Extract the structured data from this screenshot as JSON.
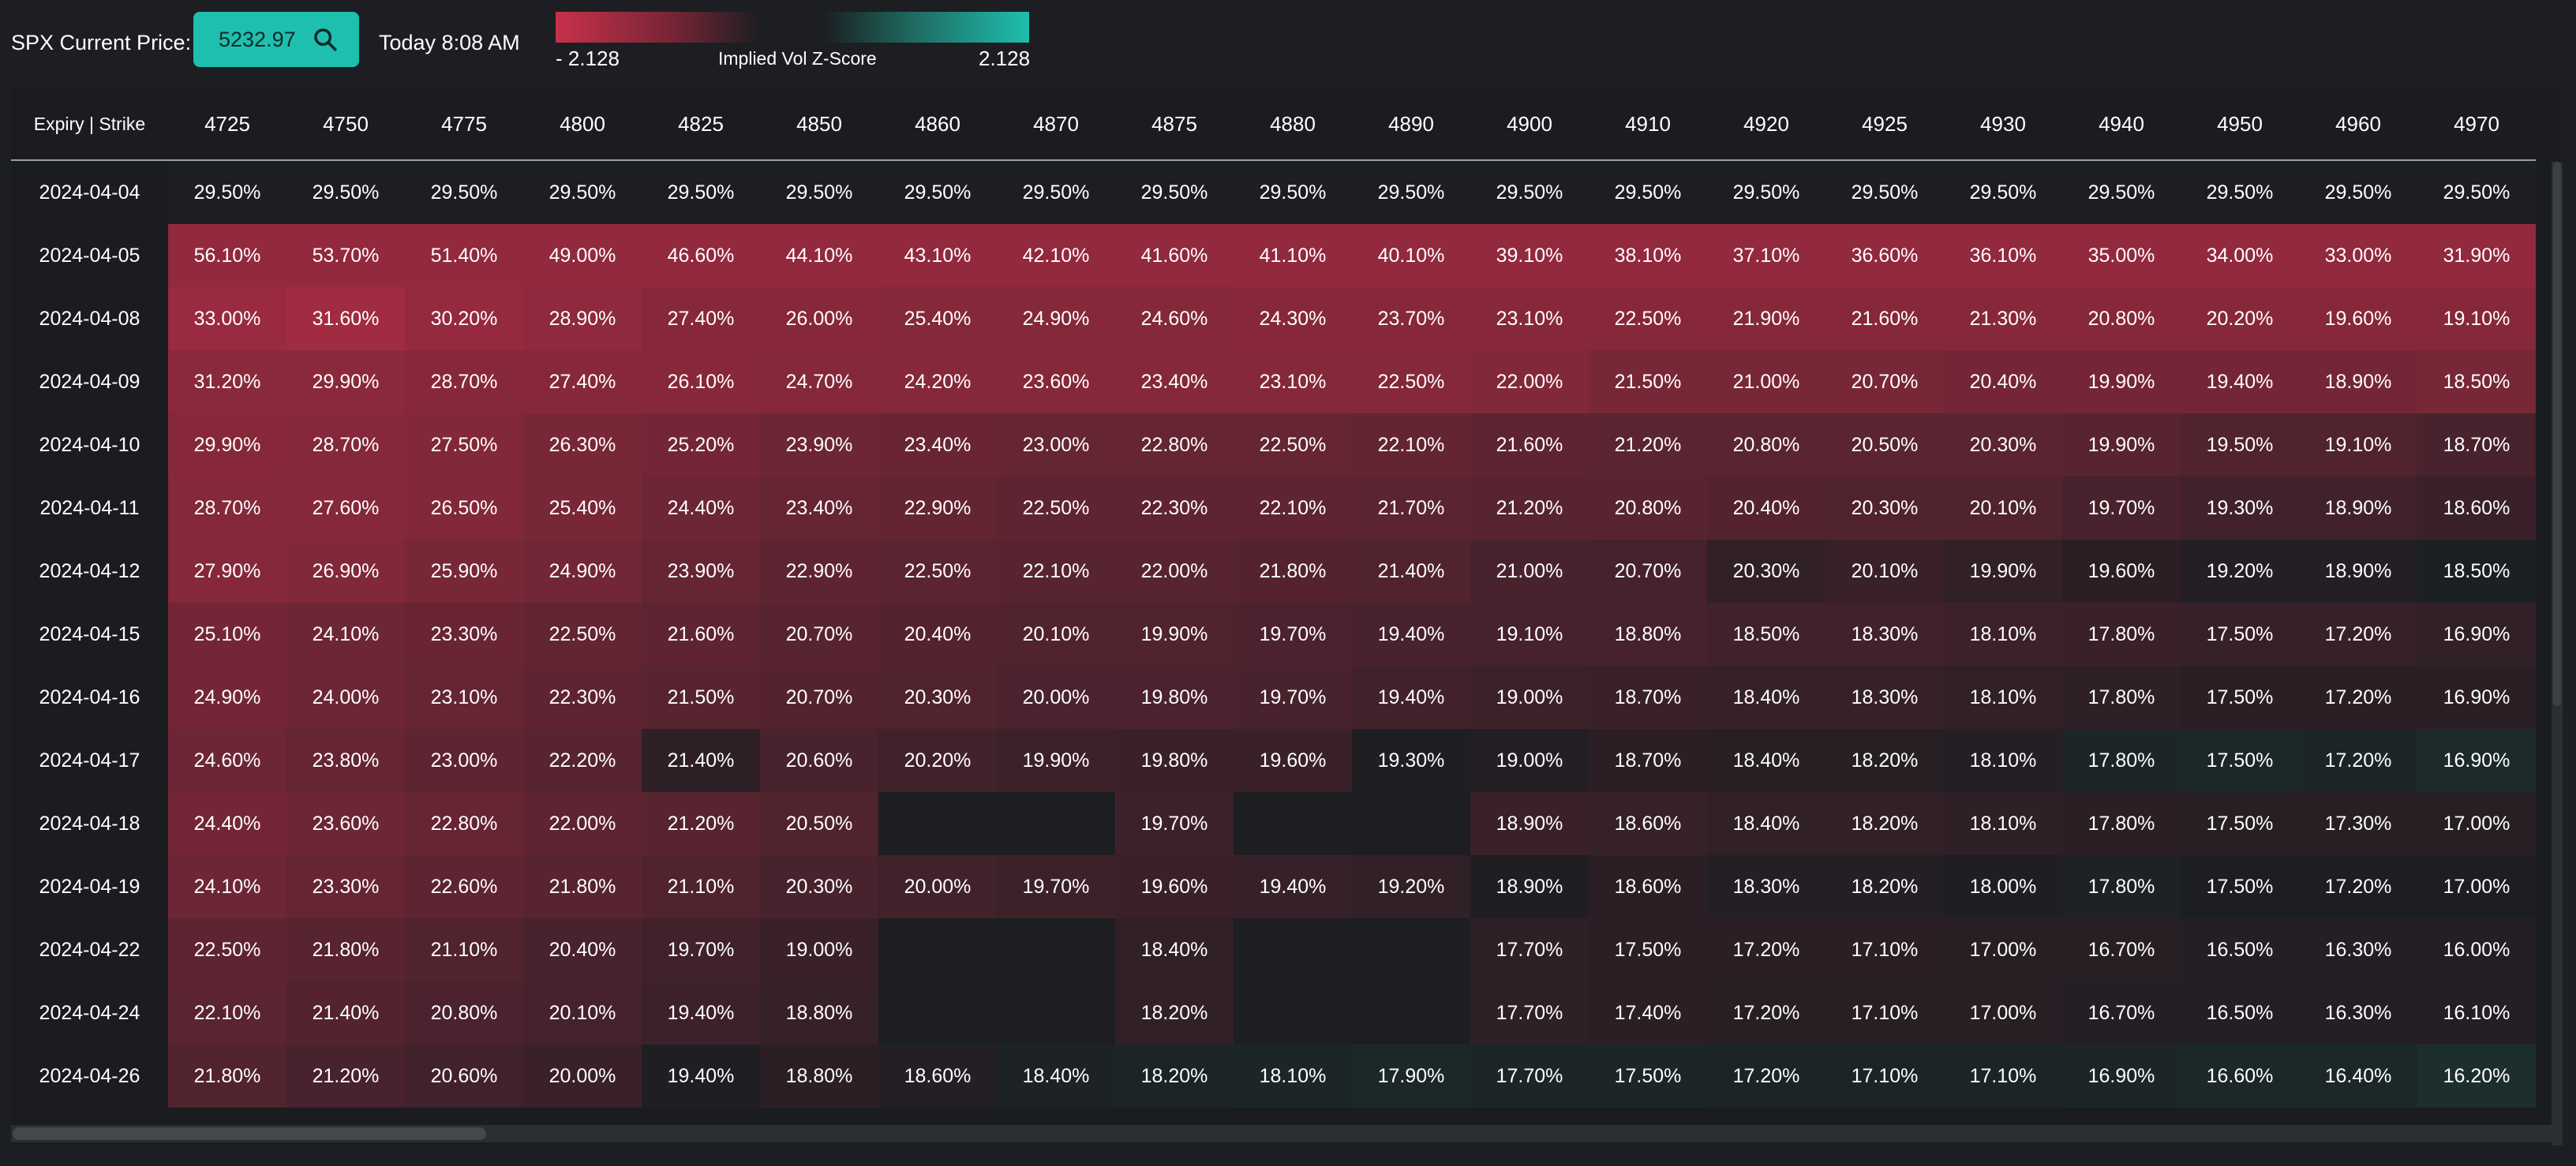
{
  "header": {
    "price_label": "SPX Current Price:",
    "price_value": "5232.97",
    "time_label": "Today 8:08 AM",
    "legend_min": "- 2.128",
    "legend_max": "2.128",
    "legend_title": "Implied Vol Z-Score",
    "icon": "search-icon"
  },
  "colors": {
    "accent": "#1fbfaf",
    "high": "#c7314b",
    "low": "#1f6d63",
    "neutral": "#1c1e22"
  },
  "grid": {
    "corner_label": "Expiry | Strike",
    "strikes": [
      "4725",
      "4750",
      "4775",
      "4800",
      "4825",
      "4850",
      "4860",
      "4870",
      "4875",
      "4880",
      "4890",
      "4900",
      "4910",
      "4920",
      "4925",
      "4930",
      "4940",
      "4950",
      "4960",
      "4970"
    ],
    "rows": [
      {
        "expiry": "2024-04-04",
        "cells": [
          "29.50%",
          "29.50%",
          "29.50%",
          "29.50%",
          "29.50%",
          "29.50%",
          "29.50%",
          "29.50%",
          "29.50%",
          "29.50%",
          "29.50%",
          "29.50%",
          "29.50%",
          "29.50%",
          "29.50%",
          "29.50%",
          "29.50%",
          "29.50%",
          "29.50%",
          "29.50%"
        ],
        "z": [
          0,
          0,
          0,
          0,
          0,
          0,
          0,
          0,
          0,
          0,
          0,
          0,
          0,
          0,
          0,
          0,
          0,
          0,
          0,
          0
        ]
      },
      {
        "expiry": "2024-04-05",
        "cells": [
          "56.10%",
          "53.70%",
          "51.40%",
          "49.00%",
          "46.60%",
          "44.10%",
          "43.10%",
          "42.10%",
          "41.60%",
          "41.10%",
          "40.10%",
          "39.10%",
          "38.10%",
          "37.10%",
          "36.60%",
          "36.10%",
          "35.00%",
          "34.00%",
          "33.00%",
          "31.90%"
        ],
        "z": [
          0.8,
          0.8,
          0.8,
          0.8,
          0.8,
          0.8,
          0.8,
          0.8,
          0.8,
          0.8,
          0.8,
          0.8,
          0.8,
          0.8,
          0.8,
          0.8,
          0.8,
          0.8,
          0.8,
          0.8
        ]
      },
      {
        "expiry": "2024-04-08",
        "cells": [
          "33.00%",
          "31.60%",
          "30.20%",
          "28.90%",
          "27.40%",
          "26.00%",
          "25.40%",
          "24.90%",
          "24.60%",
          "24.30%",
          "23.70%",
          "23.10%",
          "22.50%",
          "21.90%",
          "21.60%",
          "21.30%",
          "20.80%",
          "20.20%",
          "19.60%",
          "19.10%"
        ],
        "z": [
          0.85,
          0.9,
          0.82,
          0.78,
          0.72,
          0.72,
          0.7,
          0.7,
          0.7,
          0.72,
          0.72,
          0.72,
          0.72,
          0.72,
          0.72,
          0.72,
          0.72,
          0.72,
          0.72,
          0.72
        ]
      },
      {
        "expiry": "2024-04-09",
        "cells": [
          "31.20%",
          "29.90%",
          "28.70%",
          "27.40%",
          "26.10%",
          "24.70%",
          "24.20%",
          "23.60%",
          "23.40%",
          "23.10%",
          "22.50%",
          "22.00%",
          "21.50%",
          "21.00%",
          "20.70%",
          "20.40%",
          "19.90%",
          "19.40%",
          "18.90%",
          "18.50%"
        ],
        "z": [
          0.75,
          0.75,
          0.72,
          0.72,
          0.72,
          0.7,
          0.7,
          0.7,
          0.7,
          0.7,
          0.7,
          0.68,
          0.62,
          0.62,
          0.62,
          0.6,
          0.6,
          0.6,
          0.6,
          0.62
        ]
      },
      {
        "expiry": "2024-04-10",
        "cells": [
          "29.90%",
          "28.70%",
          "27.50%",
          "26.30%",
          "25.20%",
          "23.90%",
          "23.40%",
          "23.00%",
          "22.80%",
          "22.50%",
          "22.10%",
          "21.60%",
          "21.20%",
          "20.80%",
          "20.50%",
          "20.30%",
          "19.90%",
          "19.50%",
          "19.10%",
          "18.70%"
        ],
        "z": [
          0.72,
          0.7,
          0.68,
          0.62,
          0.6,
          0.55,
          0.52,
          0.5,
          0.5,
          0.5,
          0.48,
          0.45,
          0.42,
          0.42,
          0.42,
          0.42,
          0.4,
          0.35,
          0.35,
          0.3
        ]
      },
      {
        "expiry": "2024-04-11",
        "cells": [
          "28.70%",
          "27.60%",
          "26.50%",
          "25.40%",
          "24.40%",
          "23.40%",
          "22.90%",
          "22.50%",
          "22.30%",
          "22.10%",
          "21.70%",
          "21.20%",
          "20.80%",
          "20.40%",
          "20.30%",
          "20.10%",
          "19.70%",
          "19.30%",
          "18.90%",
          "18.60%"
        ],
        "z": [
          0.7,
          0.7,
          0.68,
          0.62,
          0.55,
          0.5,
          0.48,
          0.45,
          0.45,
          0.45,
          0.42,
          0.4,
          0.4,
          0.38,
          0.35,
          0.35,
          0.3,
          0.25,
          0.25,
          0.2
        ]
      },
      {
        "expiry": "2024-04-12",
        "cells": [
          "27.90%",
          "26.90%",
          "25.90%",
          "24.90%",
          "23.90%",
          "22.90%",
          "22.50%",
          "22.10%",
          "22.00%",
          "21.80%",
          "21.40%",
          "21.00%",
          "20.70%",
          "20.30%",
          "20.10%",
          "19.90%",
          "19.60%",
          "19.20%",
          "18.90%",
          "18.50%"
        ],
        "z": [
          0.7,
          0.68,
          0.62,
          0.58,
          0.5,
          0.45,
          0.42,
          0.4,
          0.4,
          0.38,
          0.35,
          0.3,
          0.28,
          0.15,
          0.2,
          0.15,
          0.1,
          0.05,
          0.05,
          -0.02
        ]
      },
      {
        "expiry": "2024-04-15",
        "cells": [
          "25.10%",
          "24.10%",
          "23.30%",
          "22.50%",
          "21.60%",
          "20.70%",
          "20.40%",
          "20.10%",
          "19.90%",
          "19.70%",
          "19.40%",
          "19.10%",
          "18.80%",
          "18.50%",
          "18.30%",
          "18.10%",
          "17.80%",
          "17.50%",
          "17.20%",
          "16.90%"
        ],
        "z": [
          0.6,
          0.55,
          0.52,
          0.48,
          0.45,
          0.4,
          0.38,
          0.35,
          0.35,
          0.32,
          0.3,
          0.28,
          0.28,
          0.25,
          0.25,
          0.22,
          0.2,
          0.18,
          0.18,
          0.15
        ]
      },
      {
        "expiry": "2024-04-16",
        "cells": [
          "24.90%",
          "24.00%",
          "23.10%",
          "22.30%",
          "21.50%",
          "20.70%",
          "20.30%",
          "20.00%",
          "19.80%",
          "19.70%",
          "19.40%",
          "19.00%",
          "18.70%",
          "18.40%",
          "18.30%",
          "18.10%",
          "17.80%",
          "17.50%",
          "17.20%",
          "16.90%"
        ],
        "z": [
          0.6,
          0.55,
          0.5,
          0.45,
          0.4,
          0.38,
          0.35,
          0.32,
          0.32,
          0.3,
          0.25,
          0.22,
          0.2,
          0.18,
          0.18,
          0.15,
          0.12,
          0.1,
          0.1,
          0.1
        ]
      },
      {
        "expiry": "2024-04-17",
        "cells": [
          "24.60%",
          "23.80%",
          "23.00%",
          "22.20%",
          "21.40%",
          "20.60%",
          "20.20%",
          "19.90%",
          "19.80%",
          "19.60%",
          "19.30%",
          "19.00%",
          "18.70%",
          "18.40%",
          "18.20%",
          "18.10%",
          "17.80%",
          "17.50%",
          "17.20%",
          "16.90%"
        ],
        "z": [
          0.55,
          0.5,
          0.45,
          0.4,
          0.12,
          0.3,
          0.25,
          0.22,
          0.2,
          0.2,
          0.02,
          0.05,
          0.1,
          0.08,
          0.08,
          0.05,
          -0.1,
          -0.12,
          -0.1,
          -0.15
        ]
      },
      {
        "expiry": "2024-04-18",
        "cells": [
          "24.40%",
          "23.60%",
          "22.80%",
          "22.00%",
          "21.20%",
          "20.50%",
          "",
          "",
          "19.70%",
          "",
          "",
          "18.90%",
          "18.60%",
          "18.40%",
          "18.20%",
          "18.10%",
          "17.80%",
          "17.50%",
          "17.30%",
          "17.00%"
        ],
        "z": [
          0.6,
          0.55,
          0.5,
          0.45,
          0.4,
          0.35,
          null,
          null,
          0.22,
          null,
          null,
          0.2,
          0.18,
          0.15,
          0.15,
          0.12,
          0.1,
          0.08,
          0.08,
          0.08
        ]
      },
      {
        "expiry": "2024-04-19",
        "cells": [
          "24.10%",
          "23.30%",
          "22.60%",
          "21.80%",
          "21.10%",
          "20.30%",
          "20.00%",
          "19.70%",
          "19.60%",
          "19.40%",
          "19.20%",
          "18.90%",
          "18.60%",
          "18.30%",
          "18.20%",
          "18.00%",
          "17.80%",
          "17.50%",
          "17.20%",
          "17.00%"
        ],
        "z": [
          0.55,
          0.5,
          0.45,
          0.4,
          0.35,
          0.3,
          0.25,
          0.22,
          0.2,
          0.18,
          0.15,
          0.02,
          0.1,
          0.05,
          0.05,
          0.02,
          -0.05,
          0.0,
          0.0,
          0.0
        ]
      },
      {
        "expiry": "2024-04-22",
        "cells": [
          "22.50%",
          "21.80%",
          "21.10%",
          "20.40%",
          "19.70%",
          "19.00%",
          "",
          "",
          "18.40%",
          "",
          "",
          "17.70%",
          "17.50%",
          "17.20%",
          "17.10%",
          "17.00%",
          "16.70%",
          "16.50%",
          "16.30%",
          "16.00%"
        ],
        "z": [
          0.45,
          0.4,
          0.35,
          0.3,
          0.25,
          0.2,
          null,
          null,
          0.15,
          null,
          null,
          0.12,
          0.1,
          0.1,
          0.1,
          0.08,
          0.08,
          0.05,
          0.05,
          0.05
        ]
      },
      {
        "expiry": "2024-04-24",
        "cells": [
          "22.10%",
          "21.40%",
          "20.80%",
          "20.10%",
          "19.40%",
          "18.80%",
          "",
          "",
          "18.20%",
          "",
          "",
          "17.70%",
          "17.40%",
          "17.20%",
          "17.10%",
          "17.00%",
          "16.70%",
          "16.50%",
          "16.30%",
          "16.10%"
        ],
        "z": [
          0.42,
          0.38,
          0.32,
          0.28,
          0.22,
          0.18,
          null,
          null,
          0.15,
          null,
          null,
          0.12,
          0.1,
          0.08,
          0.08,
          0.08,
          0.05,
          0.05,
          0.05,
          0.05
        ]
      },
      {
        "expiry": "2024-04-26",
        "cells": [
          "21.80%",
          "21.20%",
          "20.60%",
          "20.00%",
          "19.40%",
          "18.80%",
          "18.60%",
          "18.40%",
          "18.20%",
          "18.10%",
          "17.90%",
          "17.70%",
          "17.50%",
          "17.20%",
          "17.10%",
          "17.10%",
          "16.90%",
          "16.60%",
          "16.40%",
          "16.20%"
        ],
        "z": [
          0.35,
          0.3,
          0.25,
          0.2,
          0.02,
          0.1,
          0.05,
          -0.05,
          -0.08,
          -0.1,
          -0.12,
          -0.1,
          -0.1,
          -0.08,
          -0.08,
          -0.08,
          -0.1,
          -0.12,
          -0.12,
          -0.2
        ]
      }
    ]
  }
}
